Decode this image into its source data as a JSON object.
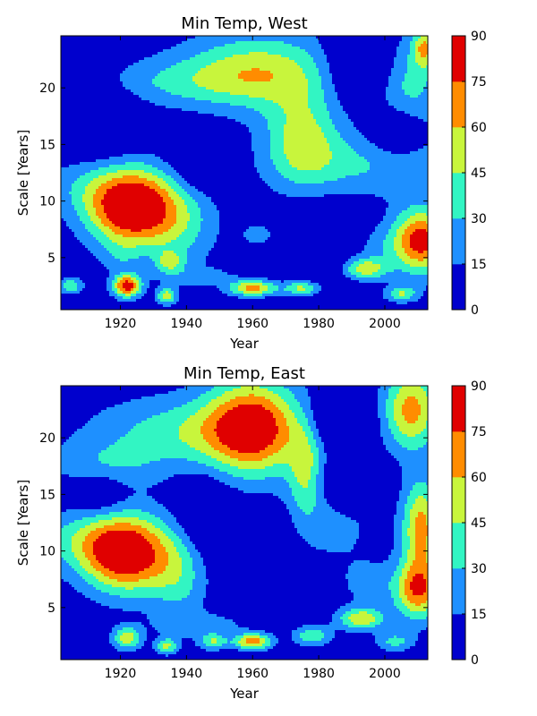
{
  "chart_data": [
    {
      "type": "contour",
      "title": "Min Temp, West",
      "xlabel": "Year",
      "ylabel": "Scale [Years]",
      "xlim": [
        1902,
        2013
      ],
      "ylim": [
        0.4,
        24.6
      ],
      "xticks": [
        1920,
        1940,
        1960,
        1980,
        2000
      ],
      "yticks": [
        5,
        10,
        15,
        20
      ],
      "colorbar": {
        "levels": [
          0,
          15,
          30,
          45,
          60,
          75,
          90
        ],
        "labels": [
          "0",
          "15",
          "30",
          "45",
          "60",
          "75",
          "90"
        ],
        "colors": [
          "#0000cd",
          "#1e90ff",
          "#32f5c3",
          "#c8f53c",
          "#ff8c00",
          "#e00000"
        ]
      },
      "features": [
        {
          "x": 1923,
          "y": 9.5,
          "sx": 9,
          "sy": 2.4,
          "v": 95
        },
        {
          "x": 1909,
          "y": 11.5,
          "sx": 9,
          "sy": 2.0,
          "v": 20
        },
        {
          "x": 1938,
          "y": 8.5,
          "sx": 8,
          "sy": 3.0,
          "v": 32
        },
        {
          "x": 1935,
          "y": 4.6,
          "sx": 3,
          "sy": 0.7,
          "v": 34
        },
        {
          "x": 1962,
          "y": 21.5,
          "sx": 16,
          "sy": 2.4,
          "v": 48
        },
        {
          "x": 1935,
          "y": 20.5,
          "sx": 20,
          "sy": 1.5,
          "v": 22
        },
        {
          "x": 1975,
          "y": 15.5,
          "sx": 8,
          "sy": 3.0,
          "v": 44
        },
        {
          "x": 1995,
          "y": 13.2,
          "sx": 18,
          "sy": 2.0,
          "v": 26
        },
        {
          "x": 2007,
          "y": 20.0,
          "sx": 8,
          "sy": 3.5,
          "v": 32
        },
        {
          "x": 2012,
          "y": 23.5,
          "sx": 2.5,
          "sy": 1.2,
          "v": 48
        },
        {
          "x": 2011,
          "y": 6.5,
          "sx": 6,
          "sy": 2.0,
          "v": 80
        },
        {
          "x": 1962,
          "y": 7.0,
          "sx": 4,
          "sy": 0.8,
          "v": 18
        },
        {
          "x": 1994,
          "y": 4.0,
          "sx": 5,
          "sy": 0.7,
          "v": 50
        },
        {
          "x": 1922,
          "y": 2.5,
          "sx": 3,
          "sy": 0.7,
          "v": 80
        },
        {
          "x": 1960,
          "y": 2.3,
          "sx": 5,
          "sy": 0.5,
          "v": 62
        },
        {
          "x": 1975,
          "y": 2.3,
          "sx": 4,
          "sy": 0.5,
          "v": 48
        },
        {
          "x": 1934,
          "y": 1.6,
          "sx": 2,
          "sy": 0.5,
          "v": 50
        },
        {
          "x": 1905,
          "y": 2.5,
          "sx": 2.5,
          "sy": 0.5,
          "v": 38
        },
        {
          "x": 2005,
          "y": 1.8,
          "sx": 3.5,
          "sy": 0.5,
          "v": 40
        },
        {
          "x": 1945,
          "y": 3.3,
          "sx": 8,
          "sy": 0.6,
          "v": 15
        },
        {
          "x": 1998,
          "y": 6.0,
          "sx": 6,
          "sy": 1.3,
          "v": 14
        },
        {
          "x": 1920,
          "y": 5.0,
          "sx": 4,
          "sy": 1.0,
          "v": 12
        },
        {
          "x": 1942,
          "y": 13.0,
          "sx": 6,
          "sy": 2.0,
          "v": -22
        },
        {
          "x": 1980,
          "y": 6.0,
          "sx": 8,
          "sy": 3.0,
          "v": -14
        },
        {
          "x": 1993,
          "y": 22.0,
          "sx": 7,
          "sy": 2.2,
          "v": -35
        },
        {
          "x": 2004,
          "y": 16.0,
          "sx": 6,
          "sy": 1.7,
          "v": -30
        },
        {
          "x": 1913,
          "y": 17.0,
          "sx": 8,
          "sy": 3.0,
          "v": -22
        }
      ]
    },
    {
      "type": "contour",
      "title": "Min Temp, East",
      "xlabel": "Year",
      "ylabel": "Scale [Years]",
      "xlim": [
        1902,
        2013
      ],
      "ylim": [
        0.4,
        24.6
      ],
      "xticks": [
        1920,
        1940,
        1960,
        1980,
        2000
      ],
      "yticks": [
        5,
        10,
        15,
        20
      ],
      "colorbar": {
        "levels": [
          0,
          15,
          30,
          45,
          60,
          75,
          90
        ],
        "labels": [
          "0",
          "15",
          "30",
          "45",
          "60",
          "75",
          "90"
        ],
        "colors": [
          "#0000cd",
          "#1e90ff",
          "#32f5c3",
          "#c8f53c",
          "#ff8c00",
          "#e00000"
        ]
      },
      "features": [
        {
          "x": 1922,
          "y": 9.8,
          "sx": 9,
          "sy": 2.4,
          "v": 92
        },
        {
          "x": 1908,
          "y": 11.0,
          "sx": 9,
          "sy": 2.0,
          "v": 28
        },
        {
          "x": 1938,
          "y": 8.0,
          "sx": 6,
          "sy": 3.0,
          "v": 30
        },
        {
          "x": 1960,
          "y": 21.0,
          "sx": 10,
          "sy": 3.0,
          "v": 75
        },
        {
          "x": 1940,
          "y": 20.5,
          "sx": 20,
          "sy": 2.2,
          "v": 35
        },
        {
          "x": 1915,
          "y": 17.5,
          "sx": 12,
          "sy": 1.5,
          "v": 22
        },
        {
          "x": 1976,
          "y": 17.0,
          "sx": 3.5,
          "sy": 3.0,
          "v": 34
        },
        {
          "x": 1985,
          "y": 14.0,
          "sx": 10,
          "sy": 4.0,
          "v": 18
        },
        {
          "x": 2008,
          "y": 22.5,
          "sx": 6,
          "sy": 2.5,
          "v": 62
        },
        {
          "x": 2011,
          "y": 12.0,
          "sx": 4,
          "sy": 3.0,
          "v": 62
        },
        {
          "x": 2010,
          "y": 6.5,
          "sx": 5,
          "sy": 1.8,
          "v": 65
        },
        {
          "x": 1993,
          "y": 4.0,
          "sx": 5,
          "sy": 0.7,
          "v": 52
        },
        {
          "x": 1960,
          "y": 2.0,
          "sx": 4,
          "sy": 0.5,
          "v": 66
        },
        {
          "x": 1922,
          "y": 2.3,
          "sx": 3,
          "sy": 0.7,
          "v": 52
        },
        {
          "x": 1948,
          "y": 2.0,
          "sx": 3,
          "sy": 0.5,
          "v": 40
        },
        {
          "x": 1978,
          "y": 2.5,
          "sx": 4,
          "sy": 0.6,
          "v": 38
        },
        {
          "x": 1934,
          "y": 1.6,
          "sx": 2.5,
          "sy": 0.5,
          "v": 42
        },
        {
          "x": 2003,
          "y": 2.0,
          "sx": 4,
          "sy": 0.6,
          "v": 30
        },
        {
          "x": 1945,
          "y": 3.5,
          "sx": 10,
          "sy": 0.7,
          "v": 18
        },
        {
          "x": 1996,
          "y": 7.0,
          "sx": 6,
          "sy": 1.5,
          "v": 15
        },
        {
          "x": 1945,
          "y": 13.0,
          "sx": 6,
          "sy": 2.5,
          "v": -22
        },
        {
          "x": 1965,
          "y": 11.0,
          "sx": 6,
          "sy": 2.0,
          "v": -10
        },
        {
          "x": 1986,
          "y": 21.5,
          "sx": 7,
          "sy": 1.8,
          "v": -30
        },
        {
          "x": 1989,
          "y": 16.0,
          "sx": 7,
          "sy": 1.6,
          "v": -30
        },
        {
          "x": 1913,
          "y": 15.0,
          "sx": 6,
          "sy": 1.5,
          "v": -20
        }
      ]
    }
  ]
}
